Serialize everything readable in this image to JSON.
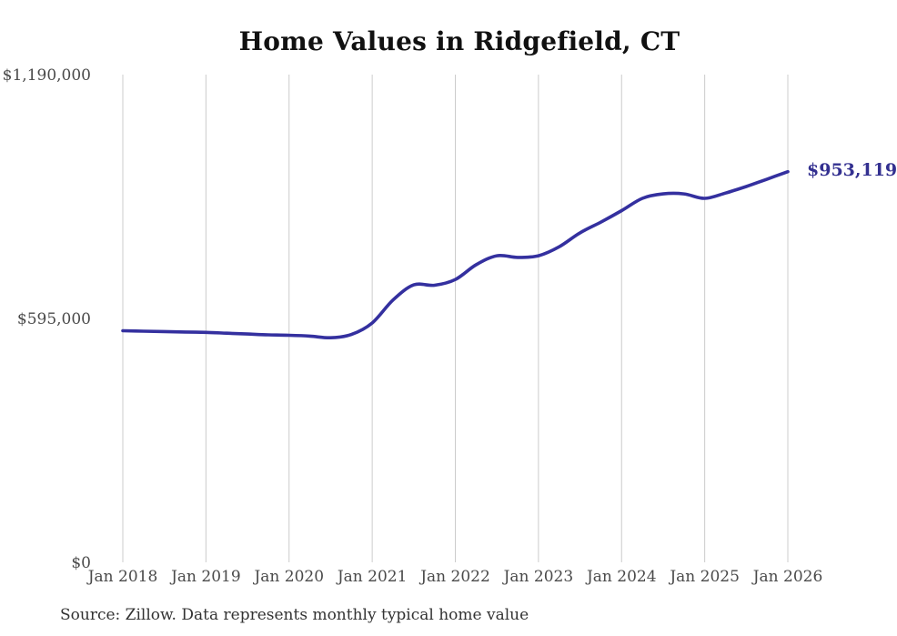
{
  "source_note": "Source: Zillow. Data represents monthly typical home value",
  "colors": {
    "background": "#ffffff",
    "title_text": "#111111",
    "axis_text": "#4a4a4a",
    "grid": "#cccccc",
    "line": "#34309f",
    "annotation": "#333090"
  },
  "chart_data": {
    "type": "line",
    "title": "Home Values in Ridgefield, CT",
    "xlabel": "",
    "ylabel": "",
    "ylim": [
      0,
      1190000
    ],
    "grid": "vertical-only",
    "legend": "none",
    "x_tick_labels": [
      "Jan 2018",
      "Jan 2019",
      "Jan 2020",
      "Jan 2021",
      "Jan 2022",
      "Jan 2023",
      "Jan 2024",
      "Jan 2025",
      "Jan 2026"
    ],
    "y_ticks": [
      {
        "value": 0,
        "label": "$0"
      },
      {
        "value": 595000,
        "label": "$595,000"
      },
      {
        "value": 1190000,
        "label": "$1,190,000"
      }
    ],
    "series": [
      {
        "name": "Monthly typical home value",
        "color": "#34309f",
        "points": [
          [
            "2018-01",
            565000
          ],
          [
            "2018-04",
            564000
          ],
          [
            "2018-07",
            563000
          ],
          [
            "2018-10",
            562000
          ],
          [
            "2019-01",
            561000
          ],
          [
            "2019-04",
            559000
          ],
          [
            "2019-07",
            557000
          ],
          [
            "2019-10",
            555000
          ],
          [
            "2020-01",
            554000
          ],
          [
            "2020-04",
            552000
          ],
          [
            "2020-07",
            548000
          ],
          [
            "2020-10",
            556000
          ],
          [
            "2021-01",
            584000
          ],
          [
            "2021-04",
            640000
          ],
          [
            "2021-07",
            677000
          ],
          [
            "2021-10",
            676000
          ],
          [
            "2022-01",
            690000
          ],
          [
            "2022-04",
            726000
          ],
          [
            "2022-07",
            748000
          ],
          [
            "2022-10",
            744000
          ],
          [
            "2023-01",
            748000
          ],
          [
            "2023-04",
            770000
          ],
          [
            "2023-07",
            804000
          ],
          [
            "2023-10",
            830000
          ],
          [
            "2024-01",
            858000
          ],
          [
            "2024-04",
            888000
          ],
          [
            "2024-07",
            899000
          ],
          [
            "2024-10",
            899000
          ],
          [
            "2025-01",
            888000
          ],
          [
            "2025-04",
            901000
          ],
          [
            "2025-07",
            917000
          ],
          [
            "2025-10",
            935000
          ],
          [
            "2026-01",
            953119
          ]
        ]
      }
    ],
    "end_annotation": {
      "label": "$953,119",
      "value": 953119,
      "color": "#333090"
    }
  }
}
